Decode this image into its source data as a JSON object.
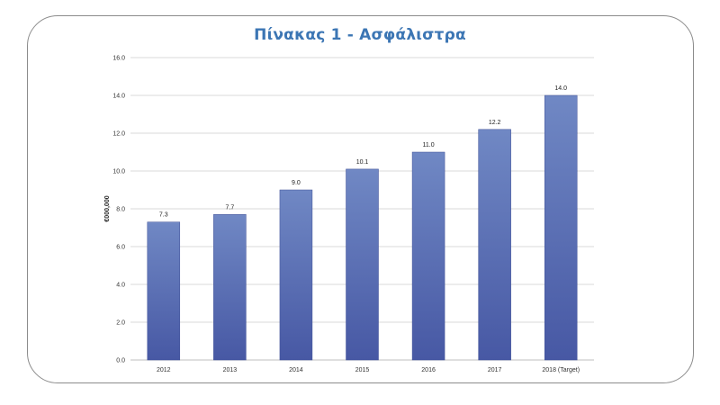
{
  "chart_data": {
    "type": "bar",
    "title": "Πίνακας 1 - Ασφάλιστρα",
    "xlabel": "",
    "ylabel": "€000,000",
    "ylim": [
      0,
      16
    ],
    "yticks": [
      "0.0",
      "2.0",
      "4.0",
      "6.0",
      "8.0",
      "10.0",
      "12.0",
      "14.0",
      "16.0"
    ],
    "categories": [
      "2012",
      "2013",
      "2014",
      "2015",
      "2016",
      "2017",
      "2018 (Target)"
    ],
    "values": [
      7.3,
      7.7,
      9.0,
      10.1,
      11.0,
      12.2,
      14.0
    ],
    "value_labels": [
      "7.3",
      "7.7",
      "9.0",
      "10.1",
      "11.0",
      "12.2",
      "14.0"
    ],
    "grid": true,
    "colors": {
      "bar_top": "#7088c4",
      "bar_bottom": "#4758a4",
      "title": "#3c76b4",
      "grid": "#d9d9d9"
    }
  }
}
